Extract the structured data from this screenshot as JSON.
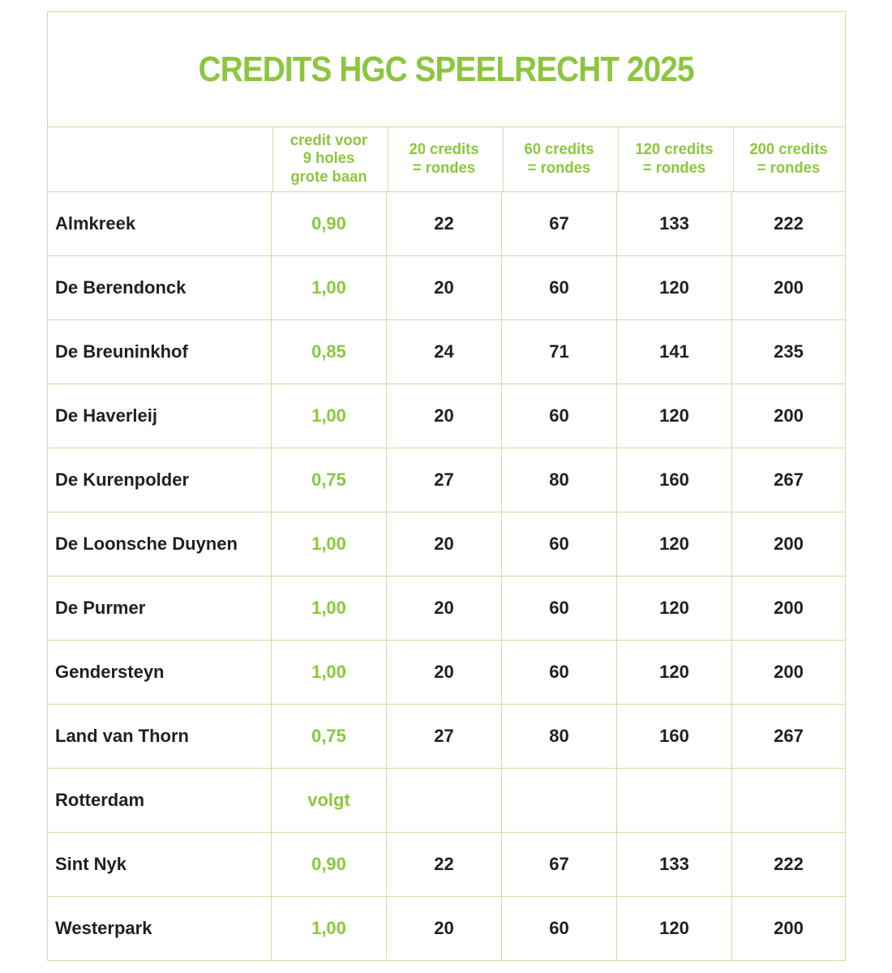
{
  "title": "CREDITS HGC SPEELRECHT 2025",
  "colors": {
    "accent_green": "#8cc63e",
    "border_green": "#c7dfa0",
    "text_black": "#231f20",
    "background": "#ffffff"
  },
  "table": {
    "headers": {
      "course": "",
      "credit": "credit voor\n9 holes\ngrote baan",
      "c20": "20 credits\n= rondes",
      "c60": "60 credits\n= rondes",
      "c120": "120 credits\n= rondes",
      "c200": "200 credits\n= rondes"
    },
    "rows": [
      {
        "name": "Almkreek",
        "credit": "0,90",
        "rondes_20": "22",
        "rondes_60": "67",
        "rondes_120": "133",
        "rondes_200": "222"
      },
      {
        "name": "De Berendonck",
        "credit": "1,00",
        "rondes_20": "20",
        "rondes_60": "60",
        "rondes_120": "120",
        "rondes_200": "200"
      },
      {
        "name": "De Breuninkhof",
        "credit": "0,85",
        "rondes_20": "24",
        "rondes_60": "71",
        "rondes_120": "141",
        "rondes_200": "235"
      },
      {
        "name": "De Haverleij",
        "credit": "1,00",
        "rondes_20": "20",
        "rondes_60": "60",
        "rondes_120": "120",
        "rondes_200": "200"
      },
      {
        "name": "De Kurenpolder",
        "credit": "0,75",
        "rondes_20": "27",
        "rondes_60": "80",
        "rondes_120": "160",
        "rondes_200": "267"
      },
      {
        "name": "De Loonsche Duynen",
        "credit": "1,00",
        "rondes_20": "20",
        "rondes_60": "60",
        "rondes_120": "120",
        "rondes_200": "200"
      },
      {
        "name": "De Purmer",
        "credit": "1,00",
        "rondes_20": "20",
        "rondes_60": "60",
        "rondes_120": "120",
        "rondes_200": "200"
      },
      {
        "name": "Gendersteyn",
        "credit": "1,00",
        "rondes_20": "20",
        "rondes_60": "60",
        "rondes_120": "120",
        "rondes_200": "200"
      },
      {
        "name": "Land van Thorn",
        "credit": "0,75",
        "rondes_20": "27",
        "rondes_60": "80",
        "rondes_120": "160",
        "rondes_200": "267"
      },
      {
        "name": "Rotterdam",
        "credit": "volgt",
        "rondes_20": "",
        "rondes_60": "",
        "rondes_120": "",
        "rondes_200": ""
      },
      {
        "name": "Sint Nyk",
        "credit": "0,90",
        "rondes_20": "22",
        "rondes_60": "67",
        "rondes_120": "133",
        "rondes_200": "222"
      },
      {
        "name": "Westerpark",
        "credit": "1,00",
        "rondes_20": "20",
        "rondes_60": "60",
        "rondes_120": "120",
        "rondes_200": "200"
      }
    ]
  }
}
